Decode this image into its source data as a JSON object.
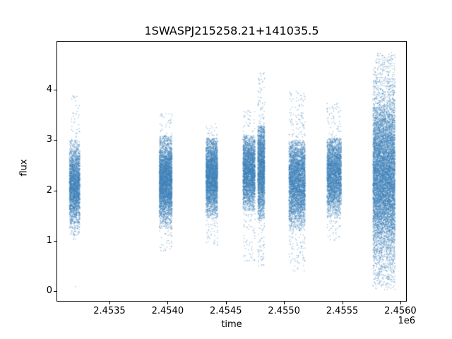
{
  "chart_data": {
    "type": "scatter",
    "title": "1SWASPJ215258.21+141035.5",
    "xlabel": "time",
    "ylabel": "flux",
    "offset_text": "1e6",
    "xlim": [
      2453045,
      2456055
    ],
    "ylim": [
      -0.21,
      4.97
    ],
    "x_ticks": [
      2453500,
      2454000,
      2454500,
      2455000,
      2455500,
      2456000
    ],
    "x_tick_labels": [
      "2.4535",
      "2.4540",
      "2.4545",
      "2.4550",
      "2.4555",
      "2.4560"
    ],
    "y_ticks": [
      0,
      1,
      2,
      3,
      4
    ],
    "y_tick_labels": [
      "0",
      "1",
      "2",
      "3",
      "4"
    ],
    "grid": false,
    "legend": "none",
    "marker_color": "#3f81b8",
    "marker_alpha": 0.45,
    "marker_size_px": 1.4,
    "clusters": [
      {
        "x_center": 2453197,
        "x_halfwidth": 45,
        "n": 2800,
        "flux_mean": 2.1,
        "flux_sigma": 0.4,
        "core_min": 1.1,
        "core_max": 3.0,
        "tail_frac": 0.045,
        "tail_min": 0.95,
        "tail_max": 3.9
      },
      {
        "x_center": 2453979,
        "x_halfwidth": 55,
        "n": 4200,
        "flux_mean": 2.2,
        "flux_sigma": 0.42,
        "core_min": 1.25,
        "core_max": 3.1,
        "tail_frac": 0.05,
        "tail_min": 0.8,
        "tail_max": 3.55
      },
      {
        "x_center": 2454375,
        "x_halfwidth": 50,
        "n": 3600,
        "flux_mean": 2.3,
        "flux_sigma": 0.38,
        "core_min": 1.45,
        "core_max": 3.05,
        "tail_frac": 0.05,
        "tail_min": 0.9,
        "tail_max": 3.35
      },
      {
        "x_center": 2454695,
        "x_halfwidth": 52,
        "n": 3200,
        "flux_mean": 2.4,
        "flux_sigma": 0.38,
        "core_min": 1.6,
        "core_max": 3.1,
        "tail_frac": 0.06,
        "tail_min": 0.6,
        "tail_max": 3.6
      },
      {
        "x_center": 2454800,
        "x_halfwidth": 30,
        "n": 2600,
        "flux_mean": 2.45,
        "flux_sigma": 0.5,
        "core_min": 1.4,
        "core_max": 3.3,
        "tail_frac": 0.1,
        "tail_min": 0.5,
        "tail_max": 4.35
      },
      {
        "x_center": 2455108,
        "x_halfwidth": 70,
        "n": 4200,
        "flux_mean": 2.2,
        "flux_sigma": 0.45,
        "core_min": 1.2,
        "core_max": 3.0,
        "tail_frac": 0.08,
        "tail_min": 0.4,
        "tail_max": 4.0
      },
      {
        "x_center": 2455427,
        "x_halfwidth": 62,
        "n": 3400,
        "flux_mean": 2.35,
        "flux_sigma": 0.42,
        "core_min": 1.45,
        "core_max": 3.05,
        "tail_frac": 0.06,
        "tail_min": 1.0,
        "tail_max": 3.75
      },
      {
        "x_center": 2455855,
        "x_halfwidth": 95,
        "n": 9000,
        "flux_mean": 2.3,
        "flux_sigma": 0.8,
        "core_min": 0.15,
        "core_max": 4.3,
        "tail_frac": 0.12,
        "tail_min": 0.03,
        "tail_max": 4.75
      }
    ],
    "extra_points": [
      [
        2453205,
        0.1
      ],
      [
        2453190,
        3.88
      ],
      [
        2454798,
        4.33
      ],
      [
        2455100,
        3.98
      ]
    ]
  }
}
